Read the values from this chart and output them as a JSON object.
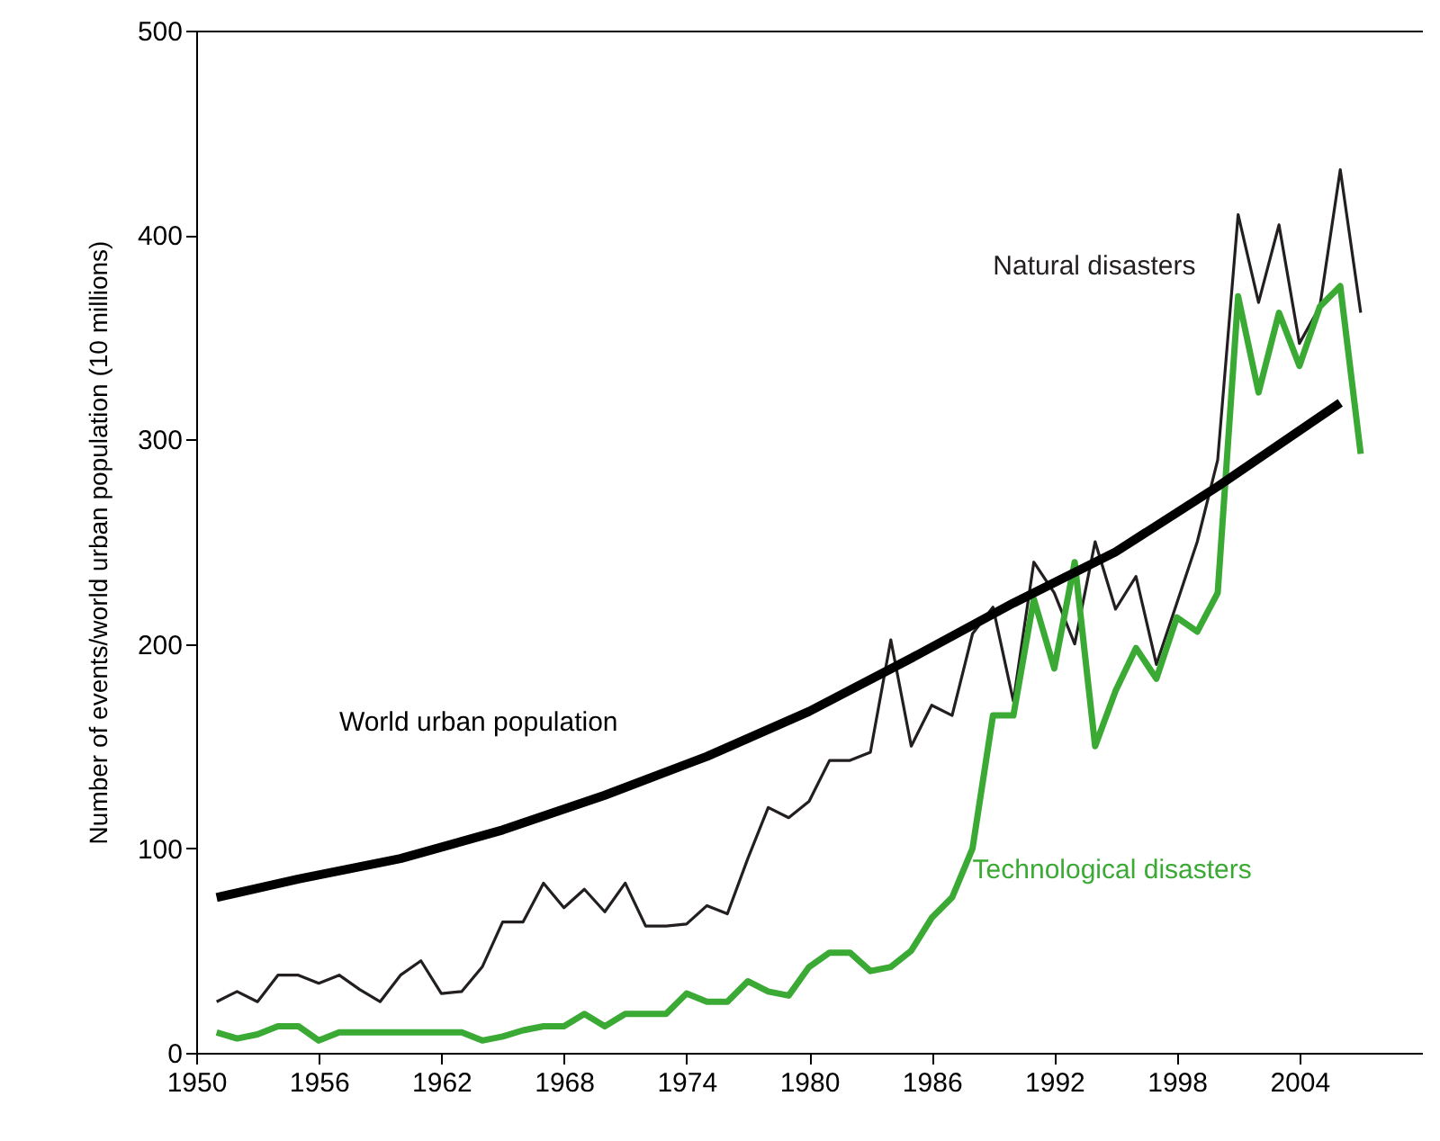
{
  "chart_data": {
    "type": "line",
    "ylabel": "Number of events/world urban population (10 millions)",
    "x": [
      1951,
      1952,
      1953,
      1954,
      1955,
      1956,
      1957,
      1958,
      1959,
      1960,
      1961,
      1962,
      1963,
      1964,
      1965,
      1966,
      1967,
      1968,
      1969,
      1970,
      1971,
      1972,
      1973,
      1974,
      1975,
      1976,
      1977,
      1978,
      1979,
      1980,
      1981,
      1982,
      1983,
      1984,
      1985,
      1986,
      1987,
      1988,
      1989,
      1990,
      1991,
      1992,
      1993,
      1994,
      1995,
      1996,
      1997,
      1998,
      1999,
      2000,
      2001,
      2002,
      2003,
      2004,
      2005,
      2006,
      2007
    ],
    "series": [
      {
        "name": "Natural disasters",
        "color": "#231f20",
        "values": [
          25,
          30,
          25,
          38,
          38,
          34,
          38,
          31,
          25,
          38,
          45,
          29,
          30,
          42,
          64,
          64,
          83,
          71,
          80,
          69,
          83,
          62,
          62,
          63,
          72,
          68,
          95,
          120,
          115,
          123,
          143,
          143,
          147,
          202,
          150,
          170,
          165,
          205,
          218,
          172,
          240,
          225,
          200,
          250,
          217,
          233,
          190,
          220,
          250,
          290,
          410,
          367,
          405,
          347,
          365,
          432,
          362
        ]
      },
      {
        "name": "Technological disasters",
        "color": "#3aaa35",
        "values": [
          10,
          7,
          9,
          13,
          13,
          6,
          10,
          10,
          10,
          10,
          10,
          10,
          10,
          6,
          8,
          11,
          13,
          13,
          19,
          13,
          19,
          19,
          19,
          29,
          25,
          25,
          35,
          30,
          28,
          42,
          49,
          49,
          40,
          42,
          50,
          66,
          76,
          100,
          165,
          165,
          222,
          188,
          240,
          150,
          177,
          198,
          183,
          213,
          206,
          225,
          370,
          323,
          362,
          336,
          365,
          375,
          293
        ]
      },
      {
        "name": "World urban population",
        "color": "#000000",
        "x": [
          1951,
          1955,
          1960,
          1965,
          1970,
          1975,
          1980,
          1985,
          1990,
          1995,
          2000,
          2006
        ],
        "values": [
          76,
          85,
          95,
          109,
          126,
          145,
          167,
          193,
          220,
          245,
          277,
          318
        ]
      }
    ],
    "xlim": [
      1950,
      2010
    ],
    "xticks": [
      1950,
      1956,
      1962,
      1968,
      1974,
      1980,
      1986,
      1992,
      1998,
      2004
    ],
    "ylim": [
      0,
      500
    ],
    "yticks": [
      0,
      100,
      200,
      300,
      400,
      500
    ],
    "grid": false
  }
}
